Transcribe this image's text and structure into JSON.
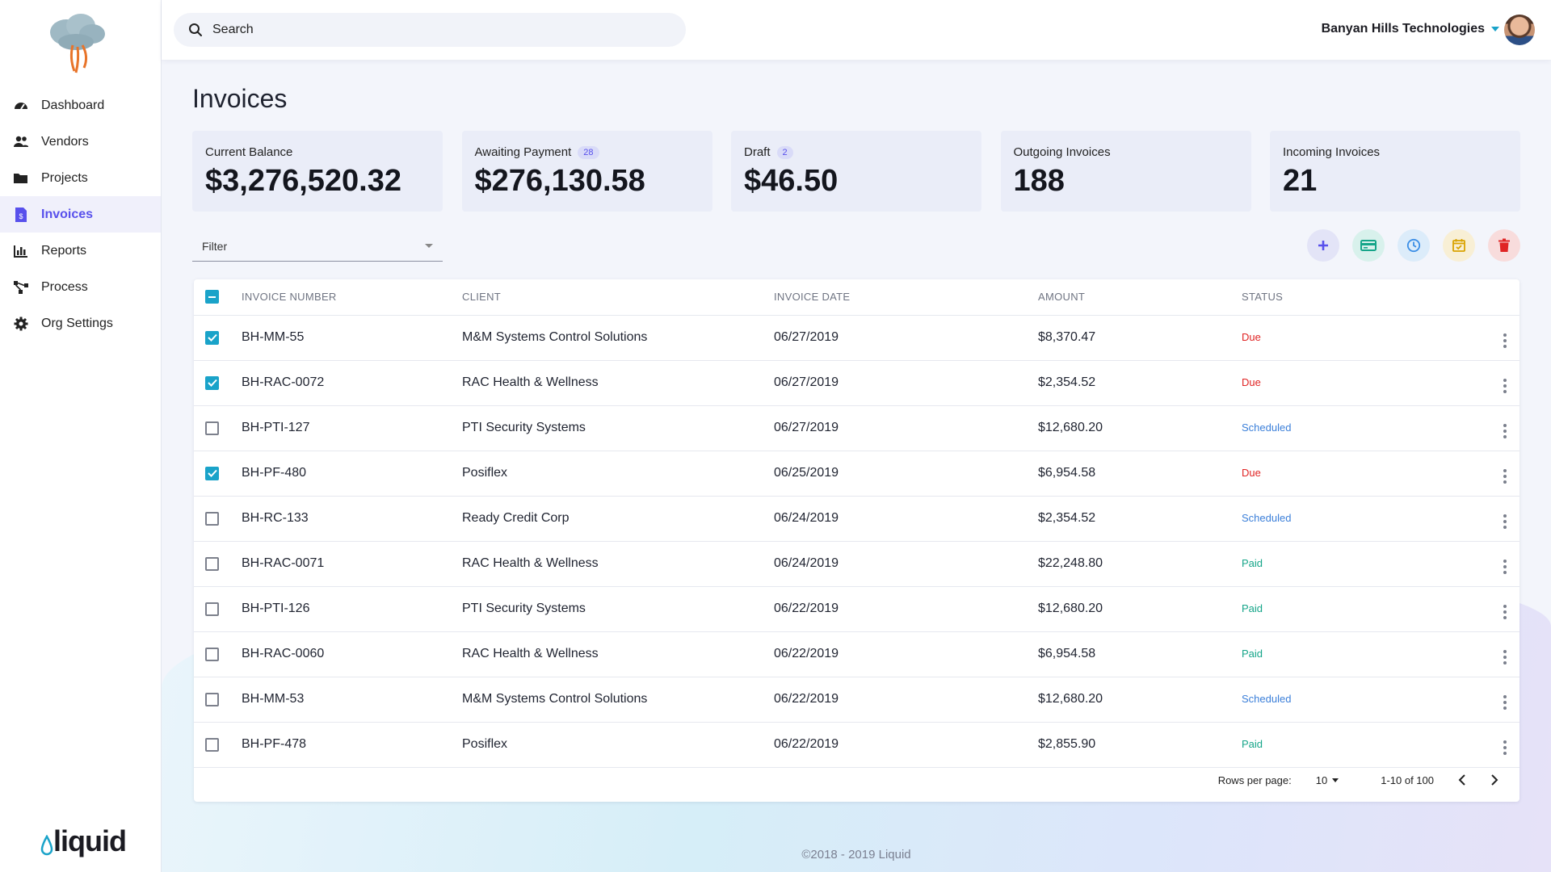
{
  "sidebar": {
    "items": [
      {
        "label": "Dashboard",
        "icon": "dashboard-icon",
        "active": false
      },
      {
        "label": "Vendors",
        "icon": "people-icon",
        "active": false
      },
      {
        "label": "Projects",
        "icon": "folder-icon",
        "active": false
      },
      {
        "label": "Invoices",
        "icon": "invoice-icon",
        "active": true
      },
      {
        "label": "Reports",
        "icon": "bar-chart-icon",
        "active": false
      },
      {
        "label": "Process",
        "icon": "process-icon",
        "active": false
      },
      {
        "label": "Org Settings",
        "icon": "gear-icon",
        "active": false
      }
    ],
    "brand": "liquid"
  },
  "header": {
    "search_placeholder": "Search",
    "org_name": "Banyan Hills Technologies"
  },
  "page": {
    "title": "Invoices"
  },
  "cards": [
    {
      "label": "Current Balance",
      "value": "$3,276,520.32",
      "badge": ""
    },
    {
      "label": "Awaiting Payment",
      "value": "$276,130.58",
      "badge": "28"
    },
    {
      "label": "Draft",
      "value": "$46.50",
      "badge": "2"
    },
    {
      "label": "Outgoing Invoices",
      "value": "188",
      "badge": ""
    },
    {
      "label": "Incoming Invoices",
      "value": "21",
      "badge": ""
    }
  ],
  "filter": {
    "label": "Filter"
  },
  "actions": [
    {
      "icon": "plus-icon",
      "bg": "#e3e4f7",
      "fg": "#5850ec"
    },
    {
      "icon": "credit-card-icon",
      "bg": "#d8f1ec",
      "fg": "#15a589"
    },
    {
      "icon": "clock-icon",
      "bg": "#dcecfa",
      "fg": "#3b8ee6"
    },
    {
      "icon": "calendar-check-icon",
      "bg": "#f8efd5",
      "fg": "#d9a300"
    },
    {
      "icon": "trash-icon",
      "bg": "#f8dcdc",
      "fg": "#e02424"
    }
  ],
  "table": {
    "headers": {
      "number": "INVOICE NUMBER",
      "client": "CLIENT",
      "date": "INVOICE DATE",
      "amount": "AMOUNT",
      "status": "STATUS"
    },
    "rows": [
      {
        "checked": true,
        "number": "BH-MM-55",
        "client": "M&M Systems Control Solutions",
        "date": "06/27/2019",
        "amount": "$8,370.47",
        "status": "Due"
      },
      {
        "checked": true,
        "number": "BH-RAC-0072",
        "client": "RAC Health & Wellness",
        "date": "06/27/2019",
        "amount": "$2,354.52",
        "status": "Due"
      },
      {
        "checked": false,
        "number": "BH-PTI-127",
        "client": "PTI Security Systems",
        "date": "06/27/2019",
        "amount": "$12,680.20",
        "status": "Scheduled"
      },
      {
        "checked": true,
        "number": "BH-PF-480",
        "client": "Posiflex",
        "date": "06/25/2019",
        "amount": "$6,954.58",
        "status": "Due"
      },
      {
        "checked": false,
        "number": "BH-RC-133",
        "client": "Ready Credit Corp",
        "date": "06/24/2019",
        "amount": "$2,354.52",
        "status": "Scheduled"
      },
      {
        "checked": false,
        "number": "BH-RAC-0071",
        "client": "RAC Health & Wellness",
        "date": "06/24/2019",
        "amount": "$22,248.80",
        "status": "Paid"
      },
      {
        "checked": false,
        "number": "BH-PTI-126",
        "client": "PTI Security Systems",
        "date": "06/22/2019",
        "amount": "$12,680.20",
        "status": "Paid"
      },
      {
        "checked": false,
        "number": "BH-RAC-0060",
        "client": "RAC Health & Wellness",
        "date": "06/22/2019",
        "amount": "$6,954.58",
        "status": "Paid"
      },
      {
        "checked": false,
        "number": "BH-MM-53",
        "client": "M&M Systems Control Solutions",
        "date": "06/22/2019",
        "amount": "$12,680.20",
        "status": "Scheduled"
      },
      {
        "checked": false,
        "number": "BH-PF-478",
        "client": "Posiflex",
        "date": "06/22/2019",
        "amount": "$2,855.90",
        "status": "Paid"
      }
    ],
    "status_colors": {
      "Due": "#e02424",
      "Scheduled": "#3b7fd9",
      "Paid": "#15a589"
    }
  },
  "pagination": {
    "rows_per_page_label": "Rows per page:",
    "rows_per_page": "10",
    "range": "1-10 of 100"
  },
  "footer": "©2018 - 2019 Liquid",
  "colors": {
    "accent": "#5850ec",
    "checkbox": "#1aa3c9"
  }
}
